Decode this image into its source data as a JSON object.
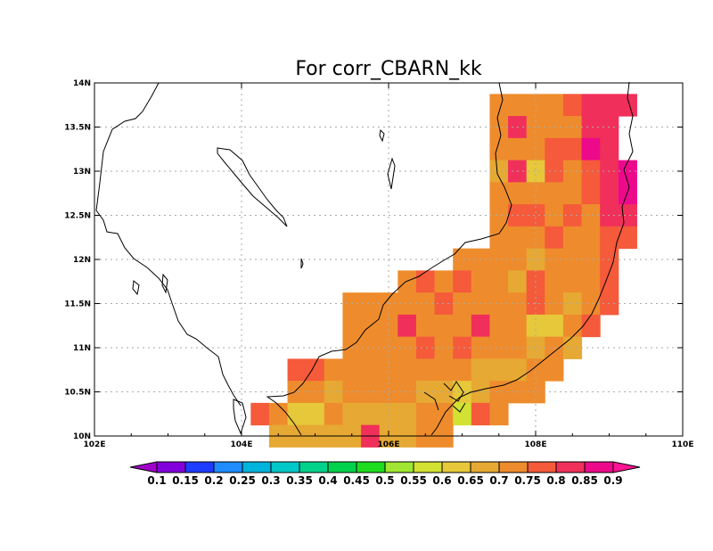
{
  "title": "For corr_CBARN_kk",
  "chart_data": {
    "type": "heatmap",
    "title": "For corr_CBARN_kk",
    "xlabel": "",
    "ylabel": "",
    "xlim": [
      102,
      110
    ],
    "ylim": [
      10,
      14
    ],
    "grid": true,
    "x_ticks": [
      {
        "value": 102,
        "label": "102E"
      },
      {
        "value": 104,
        "label": "104E"
      },
      {
        "value": 106,
        "label": "106E"
      },
      {
        "value": 108,
        "label": "108E"
      },
      {
        "value": 110,
        "label": "110E"
      }
    ],
    "y_ticks": [
      {
        "value": 10,
        "label": "10N"
      },
      {
        "value": 10.5,
        "label": "10.5N"
      },
      {
        "value": 11,
        "label": "11N"
      },
      {
        "value": 11.5,
        "label": "11.5N"
      },
      {
        "value": 12,
        "label": "12N"
      },
      {
        "value": 12.5,
        "label": "12.5N"
      },
      {
        "value": 13,
        "label": "13N"
      },
      {
        "value": 13.5,
        "label": "13.5N"
      },
      {
        "value": 14,
        "label": "14N"
      }
    ],
    "cell_size_deg": 0.25,
    "colorbar": {
      "placement": "bottom",
      "labels": [
        "0.1",
        "0.15",
        "0.2",
        "0.25",
        "0.3",
        "0.35",
        "0.4",
        "0.45",
        "0.5",
        "0.55",
        "0.6",
        "0.65",
        "0.7",
        "0.75",
        "0.8",
        "0.85",
        "0.9"
      ],
      "colors": [
        "#a000c8",
        "#8200dc",
        "#1e3cff",
        "#00a0ff",
        "#00c8c8",
        "#00d28c",
        "#00dc00",
        "#a0e632",
        "#e6dc32",
        "#e6af2d",
        "#f08228",
        "#fa3c3c",
        "#f00082",
        "#ee3a8c",
        "#f0207f",
        "#ff1493",
        "#e8208a",
        "#ff0099"
      ]
    },
    "cells": [
      {
        "lon": 107.5,
        "lat": 13.75,
        "v": 0.75
      },
      {
        "lon": 107.75,
        "lat": 13.75,
        "v": 0.75
      },
      {
        "lon": 108.0,
        "lat": 13.75,
        "v": 0.75
      },
      {
        "lon": 108.25,
        "lat": 13.75,
        "v": 0.75
      },
      {
        "lon": 108.5,
        "lat": 13.75,
        "v": 0.8
      },
      {
        "lon": 108.75,
        "lat": 13.75,
        "v": 0.85
      },
      {
        "lon": 109.0,
        "lat": 13.75,
        "v": 0.85
      },
      {
        "lon": 109.25,
        "lat": 13.75,
        "v": 0.85
      },
      {
        "lon": 107.5,
        "lat": 13.5,
        "v": 0.75
      },
      {
        "lon": 107.75,
        "lat": 13.5,
        "v": 0.85
      },
      {
        "lon": 108.0,
        "lat": 13.5,
        "v": 0.75
      },
      {
        "lon": 108.25,
        "lat": 13.5,
        "v": 0.75
      },
      {
        "lon": 108.5,
        "lat": 13.5,
        "v": 0.75
      },
      {
        "lon": 108.75,
        "lat": 13.5,
        "v": 0.85
      },
      {
        "lon": 109.0,
        "lat": 13.5,
        "v": 0.85
      },
      {
        "lon": 107.5,
        "lat": 13.25,
        "v": 0.75
      },
      {
        "lon": 107.75,
        "lat": 13.25,
        "v": 0.75
      },
      {
        "lon": 108.0,
        "lat": 13.25,
        "v": 0.75
      },
      {
        "lon": 108.25,
        "lat": 13.25,
        "v": 0.8
      },
      {
        "lon": 108.5,
        "lat": 13.25,
        "v": 0.8
      },
      {
        "lon": 108.75,
        "lat": 13.25,
        "v": 0.9
      },
      {
        "lon": 109.0,
        "lat": 13.25,
        "v": 0.85
      },
      {
        "lon": 107.5,
        "lat": 13.0,
        "v": 0.7
      },
      {
        "lon": 107.75,
        "lat": 13.0,
        "v": 0.85
      },
      {
        "lon": 108.0,
        "lat": 13.0,
        "v": 0.65
      },
      {
        "lon": 108.25,
        "lat": 13.0,
        "v": 0.8
      },
      {
        "lon": 108.5,
        "lat": 13.0,
        "v": 0.75
      },
      {
        "lon": 108.75,
        "lat": 13.0,
        "v": 0.8
      },
      {
        "lon": 109.0,
        "lat": 13.0,
        "v": 0.85
      },
      {
        "lon": 109.25,
        "lat": 13.0,
        "v": 0.9
      },
      {
        "lon": 107.5,
        "lat": 12.75,
        "v": 0.75
      },
      {
        "lon": 107.75,
        "lat": 12.75,
        "v": 0.75
      },
      {
        "lon": 108.0,
        "lat": 12.75,
        "v": 0.75
      },
      {
        "lon": 108.25,
        "lat": 12.75,
        "v": 0.75
      },
      {
        "lon": 108.5,
        "lat": 12.75,
        "v": 0.75
      },
      {
        "lon": 108.75,
        "lat": 12.75,
        "v": 0.8
      },
      {
        "lon": 109.0,
        "lat": 12.75,
        "v": 0.85
      },
      {
        "lon": 109.25,
        "lat": 12.75,
        "v": 0.9
      },
      {
        "lon": 107.5,
        "lat": 12.5,
        "v": 0.75
      },
      {
        "lon": 107.75,
        "lat": 12.5,
        "v": 0.8
      },
      {
        "lon": 108.0,
        "lat": 12.5,
        "v": 0.8
      },
      {
        "lon": 108.25,
        "lat": 12.5,
        "v": 0.75
      },
      {
        "lon": 108.5,
        "lat": 12.5,
        "v": 0.8
      },
      {
        "lon": 108.75,
        "lat": 12.5,
        "v": 0.75
      },
      {
        "lon": 109.0,
        "lat": 12.5,
        "v": 0.85
      },
      {
        "lon": 109.25,
        "lat": 12.5,
        "v": 0.85
      },
      {
        "lon": 107.5,
        "lat": 12.25,
        "v": 0.75
      },
      {
        "lon": 107.75,
        "lat": 12.25,
        "v": 0.75
      },
      {
        "lon": 108.0,
        "lat": 12.25,
        "v": 0.75
      },
      {
        "lon": 108.25,
        "lat": 12.25,
        "v": 0.8
      },
      {
        "lon": 108.5,
        "lat": 12.25,
        "v": 0.75
      },
      {
        "lon": 108.75,
        "lat": 12.25,
        "v": 0.75
      },
      {
        "lon": 109.0,
        "lat": 12.25,
        "v": 0.8
      },
      {
        "lon": 109.25,
        "lat": 12.25,
        "v": 0.8
      },
      {
        "lon": 107.0,
        "lat": 12.0,
        "v": 0.75
      },
      {
        "lon": 107.25,
        "lat": 12.0,
        "v": 0.75
      },
      {
        "lon": 107.5,
        "lat": 12.0,
        "v": 0.75
      },
      {
        "lon": 107.75,
        "lat": 12.0,
        "v": 0.75
      },
      {
        "lon": 108.0,
        "lat": 12.0,
        "v": 0.7
      },
      {
        "lon": 108.25,
        "lat": 12.0,
        "v": 0.75
      },
      {
        "lon": 108.5,
        "lat": 12.0,
        "v": 0.75
      },
      {
        "lon": 108.75,
        "lat": 12.0,
        "v": 0.75
      },
      {
        "lon": 109.0,
        "lat": 12.0,
        "v": 0.8
      },
      {
        "lon": 106.25,
        "lat": 11.75,
        "v": 0.75
      },
      {
        "lon": 106.5,
        "lat": 11.75,
        "v": 0.8
      },
      {
        "lon": 106.75,
        "lat": 11.75,
        "v": 0.75
      },
      {
        "lon": 107.0,
        "lat": 11.75,
        "v": 0.8
      },
      {
        "lon": 107.25,
        "lat": 11.75,
        "v": 0.75
      },
      {
        "lon": 107.5,
        "lat": 11.75,
        "v": 0.75
      },
      {
        "lon": 107.75,
        "lat": 11.75,
        "v": 0.7
      },
      {
        "lon": 108.0,
        "lat": 11.75,
        "v": 0.8
      },
      {
        "lon": 108.25,
        "lat": 11.75,
        "v": 0.75
      },
      {
        "lon": 108.5,
        "lat": 11.75,
        "v": 0.75
      },
      {
        "lon": 108.75,
        "lat": 11.75,
        "v": 0.75
      },
      {
        "lon": 109.0,
        "lat": 11.75,
        "v": 0.8
      },
      {
        "lon": 105.5,
        "lat": 11.5,
        "v": 0.75
      },
      {
        "lon": 105.75,
        "lat": 11.5,
        "v": 0.75
      },
      {
        "lon": 106.0,
        "lat": 11.5,
        "v": 0.75
      },
      {
        "lon": 106.25,
        "lat": 11.5,
        "v": 0.75
      },
      {
        "lon": 106.5,
        "lat": 11.5,
        "v": 0.75
      },
      {
        "lon": 106.75,
        "lat": 11.5,
        "v": 0.8
      },
      {
        "lon": 107.0,
        "lat": 11.5,
        "v": 0.75
      },
      {
        "lon": 107.25,
        "lat": 11.5,
        "v": 0.75
      },
      {
        "lon": 107.5,
        "lat": 11.5,
        "v": 0.75
      },
      {
        "lon": 107.75,
        "lat": 11.5,
        "v": 0.75
      },
      {
        "lon": 108.0,
        "lat": 11.5,
        "v": 0.8
      },
      {
        "lon": 108.25,
        "lat": 11.5,
        "v": 0.75
      },
      {
        "lon": 108.5,
        "lat": 11.5,
        "v": 0.7
      },
      {
        "lon": 108.75,
        "lat": 11.5,
        "v": 0.75
      },
      {
        "lon": 109.0,
        "lat": 11.5,
        "v": 0.8
      },
      {
        "lon": 105.5,
        "lat": 11.25,
        "v": 0.75
      },
      {
        "lon": 105.75,
        "lat": 11.25,
        "v": 0.75
      },
      {
        "lon": 106.0,
        "lat": 11.25,
        "v": 0.75
      },
      {
        "lon": 106.25,
        "lat": 11.25,
        "v": 0.85
      },
      {
        "lon": 106.5,
        "lat": 11.25,
        "v": 0.75
      },
      {
        "lon": 106.75,
        "lat": 11.25,
        "v": 0.75
      },
      {
        "lon": 107.0,
        "lat": 11.25,
        "v": 0.75
      },
      {
        "lon": 107.25,
        "lat": 11.25,
        "v": 0.85
      },
      {
        "lon": 107.5,
        "lat": 11.25,
        "v": 0.75
      },
      {
        "lon": 107.75,
        "lat": 11.25,
        "v": 0.75
      },
      {
        "lon": 108.0,
        "lat": 11.25,
        "v": 0.65
      },
      {
        "lon": 108.25,
        "lat": 11.25,
        "v": 0.65
      },
      {
        "lon": 108.5,
        "lat": 11.25,
        "v": 0.75
      },
      {
        "lon": 108.75,
        "lat": 11.25,
        "v": 0.8
      },
      {
        "lon": 105.5,
        "lat": 11.0,
        "v": 0.75
      },
      {
        "lon": 105.75,
        "lat": 11.0,
        "v": 0.75
      },
      {
        "lon": 106.0,
        "lat": 11.0,
        "v": 0.75
      },
      {
        "lon": 106.25,
        "lat": 11.0,
        "v": 0.75
      },
      {
        "lon": 106.5,
        "lat": 11.0,
        "v": 0.8
      },
      {
        "lon": 106.75,
        "lat": 11.0,
        "v": 0.75
      },
      {
        "lon": 107.0,
        "lat": 11.0,
        "v": 0.8
      },
      {
        "lon": 107.25,
        "lat": 11.0,
        "v": 0.75
      },
      {
        "lon": 107.5,
        "lat": 11.0,
        "v": 0.75
      },
      {
        "lon": 107.75,
        "lat": 11.0,
        "v": 0.75
      },
      {
        "lon": 108.0,
        "lat": 11.0,
        "v": 0.7
      },
      {
        "lon": 108.25,
        "lat": 11.0,
        "v": 0.75
      },
      {
        "lon": 108.5,
        "lat": 11.0,
        "v": 0.7
      },
      {
        "lon": 104.75,
        "lat": 10.75,
        "v": 0.8
      },
      {
        "lon": 105.0,
        "lat": 10.75,
        "v": 0.8
      },
      {
        "lon": 105.25,
        "lat": 10.75,
        "v": 0.75
      },
      {
        "lon": 105.5,
        "lat": 10.75,
        "v": 0.75
      },
      {
        "lon": 105.75,
        "lat": 10.75,
        "v": 0.75
      },
      {
        "lon": 106.0,
        "lat": 10.75,
        "v": 0.75
      },
      {
        "lon": 106.25,
        "lat": 10.75,
        "v": 0.75
      },
      {
        "lon": 106.5,
        "lat": 10.75,
        "v": 0.75
      },
      {
        "lon": 106.75,
        "lat": 10.75,
        "v": 0.75
      },
      {
        "lon": 107.0,
        "lat": 10.75,
        "v": 0.75
      },
      {
        "lon": 107.25,
        "lat": 10.75,
        "v": 0.7
      },
      {
        "lon": 107.5,
        "lat": 10.75,
        "v": 0.7
      },
      {
        "lon": 107.75,
        "lat": 10.75,
        "v": 0.7
      },
      {
        "lon": 108.0,
        "lat": 10.75,
        "v": 0.75
      },
      {
        "lon": 108.25,
        "lat": 10.75,
        "v": 0.75
      },
      {
        "lon": 104.75,
        "lat": 10.5,
        "v": 0.75
      },
      {
        "lon": 105.0,
        "lat": 10.5,
        "v": 0.75
      },
      {
        "lon": 105.25,
        "lat": 10.5,
        "v": 0.7
      },
      {
        "lon": 105.5,
        "lat": 10.5,
        "v": 0.75
      },
      {
        "lon": 105.75,
        "lat": 10.5,
        "v": 0.75
      },
      {
        "lon": 106.0,
        "lat": 10.5,
        "v": 0.75
      },
      {
        "lon": 106.25,
        "lat": 10.5,
        "v": 0.75
      },
      {
        "lon": 106.5,
        "lat": 10.5,
        "v": 0.7
      },
      {
        "lon": 106.75,
        "lat": 10.5,
        "v": 0.7
      },
      {
        "lon": 107.0,
        "lat": 10.5,
        "v": 0.65
      },
      {
        "lon": 107.25,
        "lat": 10.5,
        "v": 0.7
      },
      {
        "lon": 107.5,
        "lat": 10.5,
        "v": 0.75
      },
      {
        "lon": 107.75,
        "lat": 10.5,
        "v": 0.75
      },
      {
        "lon": 108.0,
        "lat": 10.5,
        "v": 0.75
      },
      {
        "lon": 104.25,
        "lat": 10.25,
        "v": 0.8
      },
      {
        "lon": 104.5,
        "lat": 10.25,
        "v": 0.75
      },
      {
        "lon": 104.75,
        "lat": 10.25,
        "v": 0.65
      },
      {
        "lon": 105.0,
        "lat": 10.25,
        "v": 0.65
      },
      {
        "lon": 105.25,
        "lat": 10.25,
        "v": 0.75
      },
      {
        "lon": 105.5,
        "lat": 10.25,
        "v": 0.7
      },
      {
        "lon": 105.75,
        "lat": 10.25,
        "v": 0.7
      },
      {
        "lon": 106.0,
        "lat": 10.25,
        "v": 0.7
      },
      {
        "lon": 106.25,
        "lat": 10.25,
        "v": 0.7
      },
      {
        "lon": 106.5,
        "lat": 10.25,
        "v": 0.75
      },
      {
        "lon": 106.75,
        "lat": 10.25,
        "v": 0.75
      },
      {
        "lon": 107.0,
        "lat": 10.25,
        "v": 0.6
      },
      {
        "lon": 107.25,
        "lat": 10.25,
        "v": 0.8
      },
      {
        "lon": 107.5,
        "lat": 10.25,
        "v": 0.75
      },
      {
        "lon": 104.5,
        "lat": 10.0,
        "v": 0.7
      },
      {
        "lon": 104.75,
        "lat": 10.0,
        "v": 0.7
      },
      {
        "lon": 105.0,
        "lat": 10.0,
        "v": 0.7
      },
      {
        "lon": 105.25,
        "lat": 10.0,
        "v": 0.7
      },
      {
        "lon": 105.5,
        "lat": 10.0,
        "v": 0.7
      },
      {
        "lon": 105.75,
        "lat": 10.0,
        "v": 0.85
      },
      {
        "lon": 106.0,
        "lat": 10.0,
        "v": 0.7
      },
      {
        "lon": 106.25,
        "lat": 10.0,
        "v": 0.7
      },
      {
        "lon": 106.5,
        "lat": 10.0,
        "v": 0.75
      },
      {
        "lon": 106.75,
        "lat": 10.0,
        "v": 0.75
      }
    ]
  }
}
